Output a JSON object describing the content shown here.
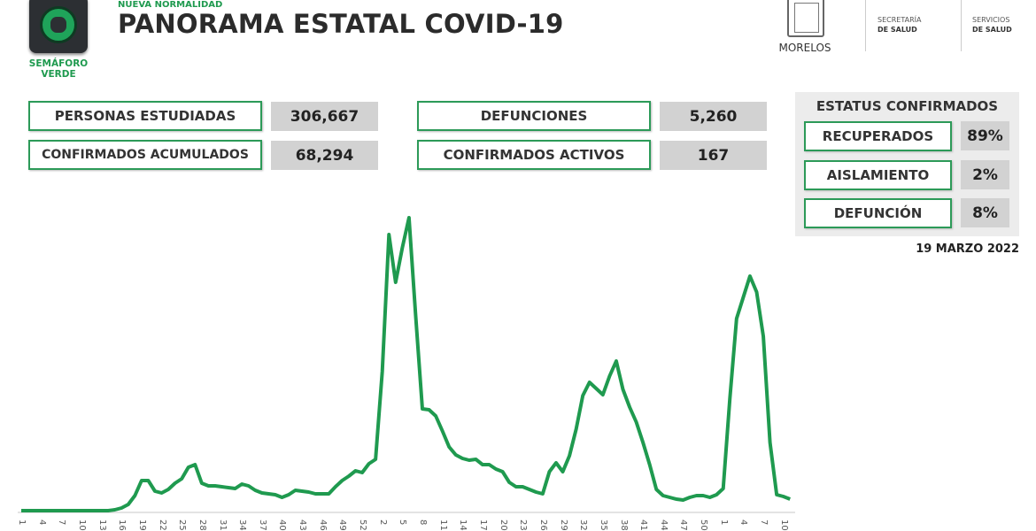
{
  "header": {
    "subtitle": "NUEVA NORMALIDAD",
    "title": "PANORAMA ESTATAL COVID-19",
    "semaforo_line1": "SEMÁFORO",
    "semaforo_line2": "VERDE",
    "state_logo": "MORELOS",
    "dep1_line1": "SECRETARÍA",
    "dep1_line2": "DE SALUD",
    "dep2_line1": "SERVICIOS",
    "dep2_line2": "DE SALUD"
  },
  "stats": [
    {
      "label": "PERSONAS ESTUDIADAS",
      "value": "306,667"
    },
    {
      "label": "CONFIRMADOS ACUMULADOS",
      "value": "68,294"
    },
    {
      "label": "DEFUNCIONES",
      "value": "5,260"
    },
    {
      "label": "CONFIRMADOS ACTIVOS",
      "value": "167"
    }
  ],
  "status": {
    "title": "ESTATUS CONFIRMADOS",
    "items": [
      {
        "label": "RECUPERADOS",
        "value": "89%"
      },
      {
        "label": "AISLAMIENTO",
        "value": "2%"
      },
      {
        "label": "DEFUNCIÓN",
        "value": "8%"
      }
    ]
  },
  "date": "19 MARZO 2022",
  "colors": {
    "accent": "#1f9a4f",
    "line": "#1f9a4f",
    "value_bg": "#d2d2d2"
  },
  "chart_data": {
    "type": "line",
    "title": "",
    "xlabel": "",
    "ylabel": "",
    "note": "no y-axis printed; values are relative heights",
    "tick_labels": [
      "1",
      "4",
      "7",
      "10",
      "13",
      "16",
      "19",
      "22",
      "25",
      "28",
      "31",
      "34",
      "37",
      "40",
      "43",
      "46",
      "49",
      "52",
      "2",
      "5",
      "8",
      "11",
      "14",
      "17",
      "20",
      "23",
      "26",
      "29",
      "32",
      "35",
      "38",
      "41",
      "44",
      "47",
      "50",
      "1",
      "4",
      "7",
      "10"
    ],
    "tick_indices": [
      0,
      3,
      6,
      9,
      12,
      15,
      18,
      21,
      24,
      27,
      30,
      33,
      36,
      39,
      42,
      45,
      48,
      51,
      54,
      57,
      60,
      63,
      66,
      69,
      72,
      75,
      78,
      81,
      84,
      87,
      90,
      93,
      96,
      99,
      102,
      105,
      108,
      111,
      114
    ],
    "grid": false,
    "series": [
      {
        "values": [
          0,
          0,
          0,
          0,
          0,
          0,
          0,
          0,
          0,
          0,
          0,
          0,
          0,
          0,
          1,
          3,
          7,
          17,
          34,
          34,
          22,
          20,
          24,
          31,
          36,
          49,
          52,
          31,
          28,
          28,
          27,
          26,
          25,
          30,
          28,
          23,
          20,
          19,
          18,
          15,
          18,
          23,
          22,
          21,
          19,
          19,
          19,
          27,
          34,
          39,
          45,
          43,
          53,
          58,
          157,
          312,
          258,
          297,
          331,
          220,
          115,
          114,
          107,
          90,
          72,
          63,
          59,
          57,
          58,
          52,
          52,
          47,
          44,
          32,
          27,
          27,
          24,
          21,
          19,
          44,
          54,
          44,
          62,
          92,
          130,
          145,
          138,
          131,
          152,
          169,
          137,
          117,
          100,
          77,
          52,
          24,
          17,
          15,
          13,
          12,
          15,
          17,
          17,
          15,
          18,
          25,
          127,
          217,
          241,
          265,
          247,
          197,
          77,
          18,
          16,
          13
        ]
      }
    ]
  }
}
